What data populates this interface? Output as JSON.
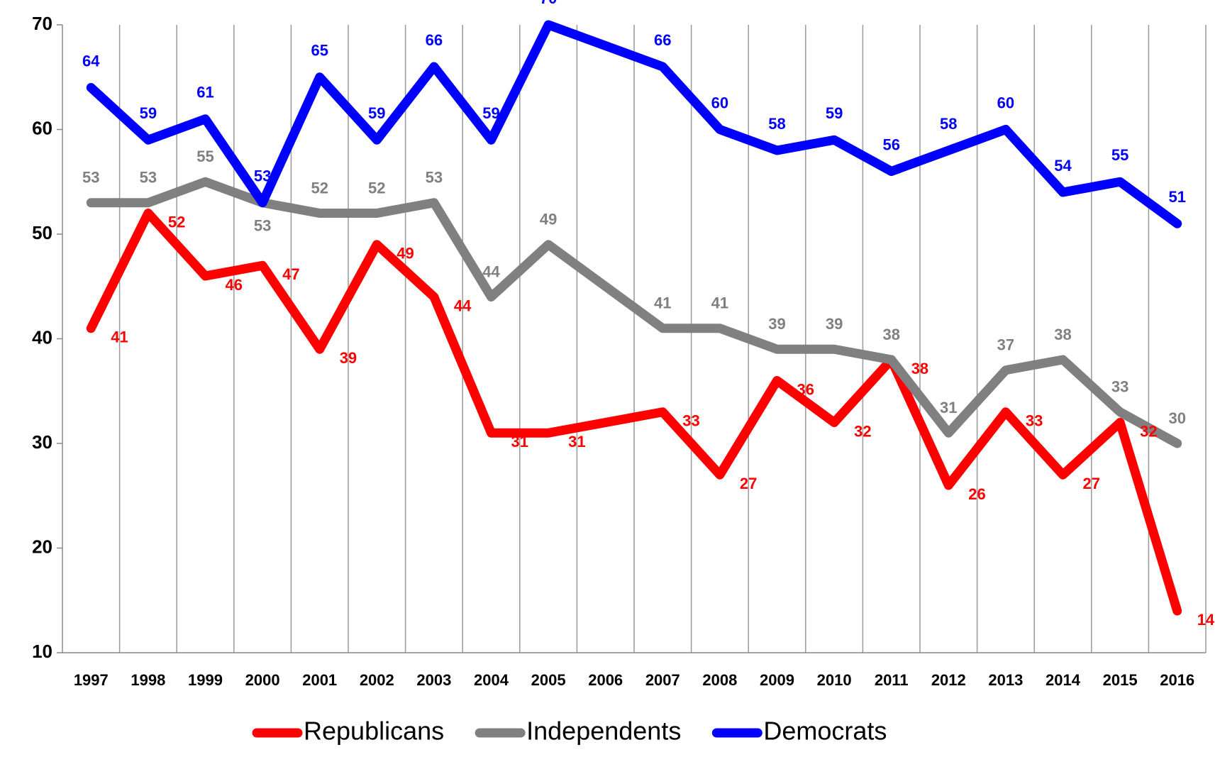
{
  "chart_data": {
    "type": "line",
    "x": [
      1997,
      1998,
      1999,
      2000,
      2001,
      2002,
      2003,
      2004,
      2005,
      2007,
      2008,
      2009,
      2010,
      2011,
      2012,
      2013,
      2014,
      2015,
      2016
    ],
    "xlim": [
      1996.5,
      2016.5
    ],
    "xticks": [
      1997,
      1998,
      1999,
      2000,
      2001,
      2002,
      2003,
      2004,
      2005,
      2006,
      2007,
      2008,
      2009,
      2010,
      2011,
      2012,
      2013,
      2014,
      2015,
      2016
    ],
    "ylim": [
      10,
      70
    ],
    "yticks": [
      10,
      20,
      30,
      40,
      50,
      60,
      70
    ],
    "grid": true,
    "legend": "bottom",
    "series": [
      {
        "name": "Republicans",
        "color": "#ff0000",
        "values": [
          41,
          52,
          46,
          47,
          39,
          49,
          44,
          31,
          31,
          33,
          27,
          36,
          32,
          38,
          26,
          33,
          27,
          32,
          14
        ]
      },
      {
        "name": "Independents",
        "color": "#808080",
        "values": [
          53,
          53,
          55,
          53,
          52,
          52,
          53,
          44,
          49,
          41,
          41,
          39,
          39,
          38,
          31,
          37,
          38,
          33,
          30
        ]
      },
      {
        "name": "Democrats",
        "color": "#0000ff",
        "values": [
          64,
          59,
          61,
          53,
          65,
          59,
          66,
          59,
          70,
          66,
          60,
          58,
          59,
          56,
          58,
          60,
          54,
          55,
          51
        ]
      }
    ]
  }
}
